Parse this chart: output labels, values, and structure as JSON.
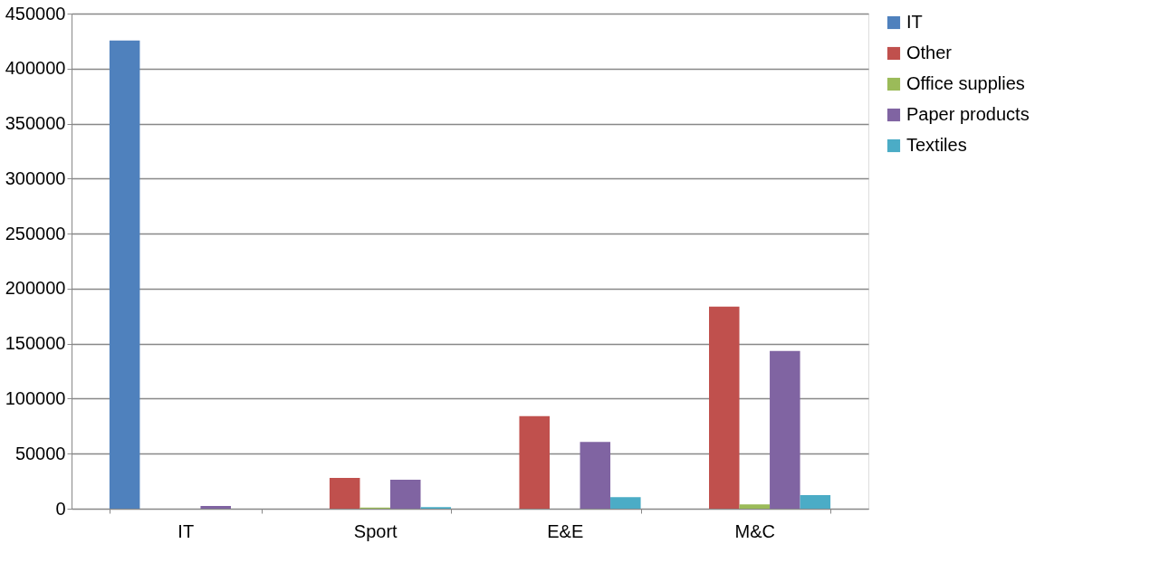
{
  "chart_data": {
    "type": "bar",
    "categories": [
      "IT",
      "Sport",
      "E&E",
      "M&C"
    ],
    "series": [
      {
        "name": "IT",
        "color": "#4f81bd",
        "values": [
          425500,
          0,
          0,
          0
        ]
      },
      {
        "name": "Other",
        "color": "#c0504d",
        "values": [
          0,
          28000,
          84200,
          183700
        ]
      },
      {
        "name": "Office supplies",
        "color": "#9bbb59",
        "values": [
          0,
          1000,
          0,
          3900
        ]
      },
      {
        "name": "Paper products",
        "color": "#8064a2",
        "values": [
          2500,
          26300,
          60600,
          143400
        ]
      },
      {
        "name": "Textiles",
        "color": "#4bacc6",
        "values": [
          0,
          1500,
          10400,
          12300
        ]
      }
    ],
    "ylim": [
      0,
      450000
    ],
    "yticks": [
      0,
      50000,
      100000,
      150000,
      200000,
      250000,
      300000,
      350000,
      400000,
      450000
    ],
    "grid": "y",
    "legend": "right"
  }
}
